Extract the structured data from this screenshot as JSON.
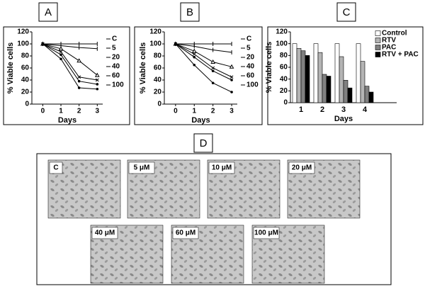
{
  "panels": [
    "A",
    "B",
    "C",
    "D"
  ],
  "micrographs": [
    "C",
    "5 μM",
    "10 μM",
    "20 μM",
    "40 μM",
    "60 μM",
    "100 μM"
  ],
  "chart_data": [
    {
      "type": "line",
      "x_label": "Days",
      "y_label": "% Viable cells",
      "x": [
        0,
        1,
        2,
        3
      ],
      "xlim": [
        -0.6,
        3.3
      ],
      "xticks": [
        0,
        1,
        2,
        3
      ],
      "ylim": [
        0,
        120
      ],
      "yticks": [
        0,
        20,
        40,
        60,
        80,
        100,
        120
      ],
      "series": [
        {
          "name": "C",
          "color": "#000000",
          "values": [
            100,
            100,
            100,
            100
          ]
        },
        {
          "name": "5",
          "color": "#000000",
          "values": [
            100,
            97,
            94,
            92
          ]
        },
        {
          "name": "20",
          "color": "#000000",
          "values": [
            100,
            92,
            72,
            48
          ]
        },
        {
          "name": "40",
          "color": "#000000",
          "values": [
            100,
            87,
            45,
            40
          ]
        },
        {
          "name": "60",
          "color": "#000000",
          "values": [
            100,
            82,
            38,
            33
          ]
        },
        {
          "name": "100",
          "color": "#000000",
          "values": [
            100,
            75,
            27,
            25
          ]
        }
      ]
    },
    {
      "type": "line",
      "x_label": "Days",
      "y_label": "% Viable cells",
      "x": [
        0,
        1,
        2,
        3
      ],
      "xlim": [
        -0.6,
        3.3
      ],
      "xticks": [
        0,
        1,
        2,
        3
      ],
      "ylim": [
        0,
        120
      ],
      "yticks": [
        0,
        20,
        40,
        60,
        80,
        100,
        120
      ],
      "series": [
        {
          "name": "C",
          "color": "#000000",
          "values": [
            100,
            100,
            100,
            100
          ]
        },
        {
          "name": "5",
          "color": "#000000",
          "values": [
            100,
            96,
            90,
            86
          ]
        },
        {
          "name": "20",
          "color": "#000000",
          "values": [
            100,
            88,
            70,
            62
          ]
        },
        {
          "name": "40",
          "color": "#000000",
          "values": [
            100,
            83,
            60,
            45
          ]
        },
        {
          "name": "60",
          "color": "#000000",
          "values": [
            100,
            78,
            55,
            40
          ]
        },
        {
          "name": "100",
          "color": "#000000",
          "values": [
            100,
            65,
            35,
            20
          ]
        }
      ]
    },
    {
      "type": "bar",
      "x_label": "Days",
      "y_label": "% Viable cells",
      "categories": [
        "1",
        "2",
        "3",
        "4"
      ],
      "ylim": [
        0,
        120
      ],
      "yticks": [
        0,
        20,
        40,
        60,
        80,
        100,
        120
      ],
      "series": [
        {
          "name": "Control",
          "color": "#ffffff",
          "values": [
            100,
            100,
            100,
            100
          ]
        },
        {
          "name": "RTV",
          "color": "#b4b4b4",
          "values": [
            92,
            85,
            78,
            70
          ]
        },
        {
          "name": "PAC",
          "color": "#808080",
          "values": [
            88,
            48,
            38,
            28
          ]
        },
        {
          "name": "RTV + PAC",
          "color": "#000000",
          "values": [
            80,
            45,
            25,
            18
          ]
        }
      ]
    }
  ]
}
